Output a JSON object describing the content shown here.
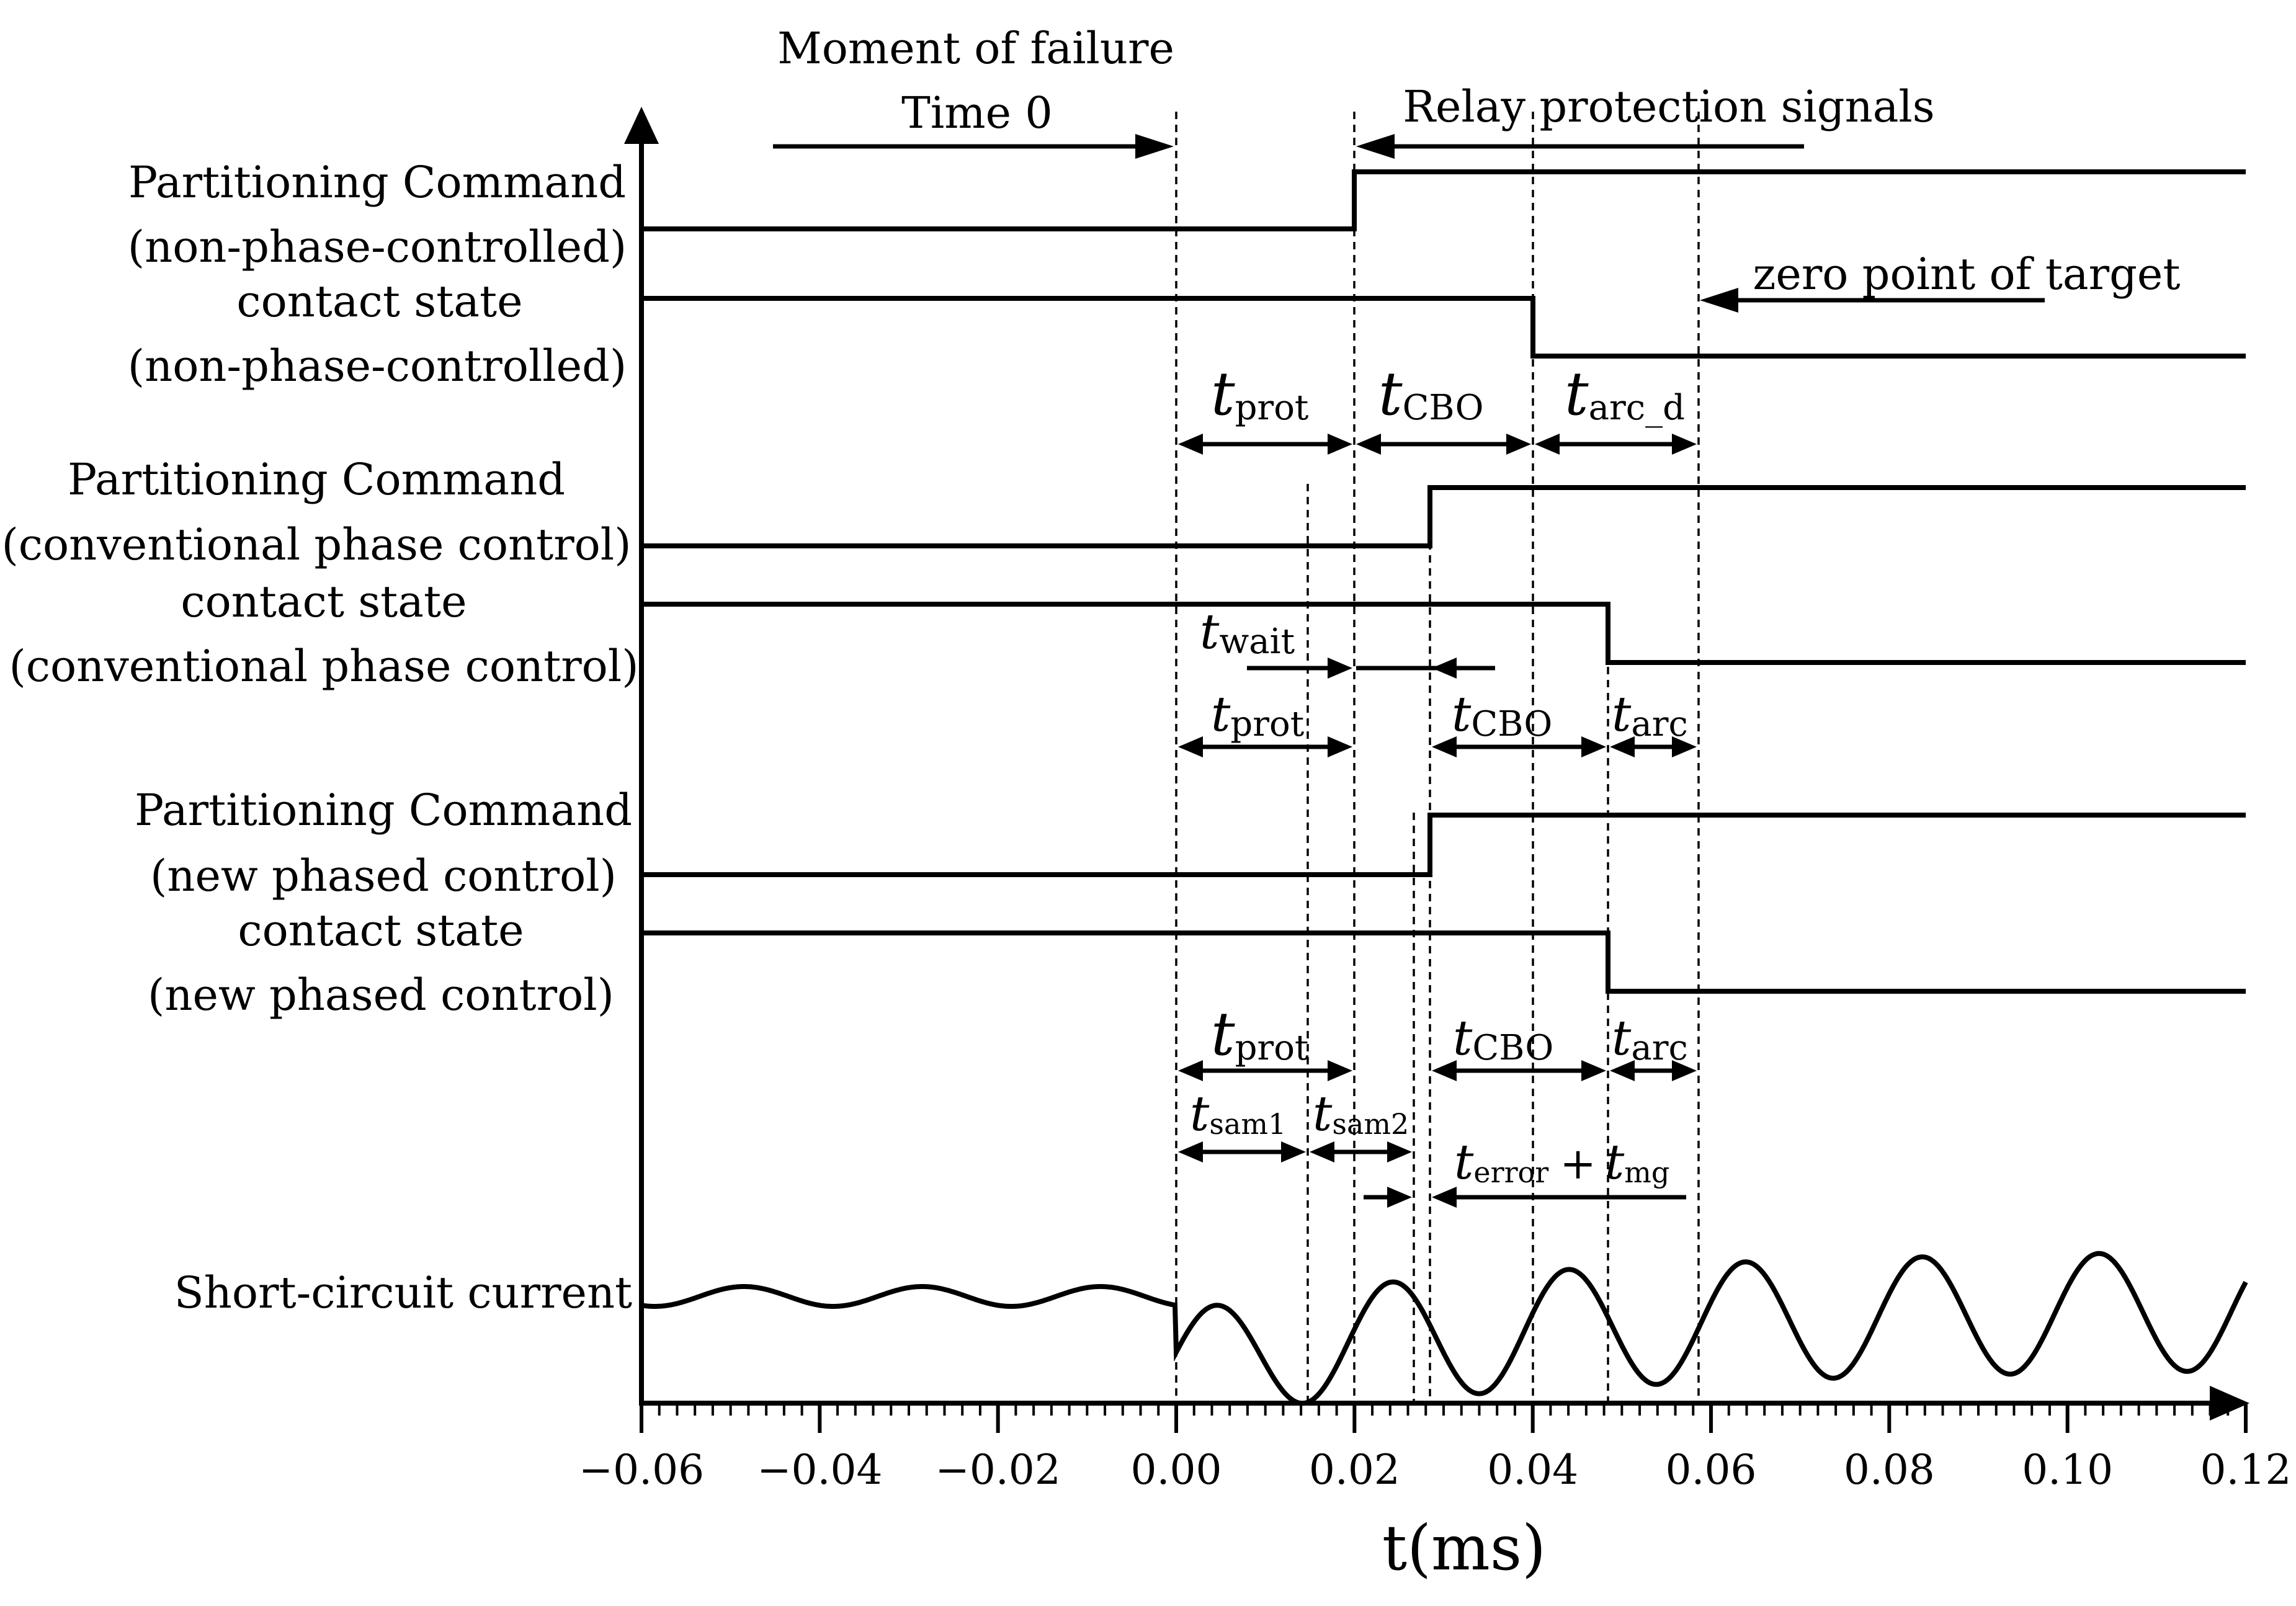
{
  "figure": {
    "annotations": {
      "moment": "Moment of failure",
      "time0": "Time 0",
      "relay": "Relay protection signals",
      "zero_target": "zero point of target"
    },
    "signals": [
      {
        "key": "cmd_np",
        "line1": "Partitioning Command",
        "line2": "(non-phase-controlled)",
        "low_to_high": true,
        "step_at": 0.02
      },
      {
        "key": "cs_np",
        "line1": "contact state",
        "line2": "(non-phase-controlled)",
        "low_to_high": false,
        "step_at": 0.04
      },
      {
        "key": "cmd_cp",
        "line1": "Partitioning Command",
        "line2": "(conventional phase control)",
        "low_to_high": true,
        "step_at": 0.0288
      },
      {
        "key": "cs_cp",
        "line1": "contact state",
        "line2": "(conventional phase control)",
        "low_to_high": false,
        "step_at": 0.0488
      },
      {
        "key": "cmd_new",
        "line1": "Partitioning Command",
        "line2": "(new phased control)",
        "low_to_high": true,
        "step_at": 0.0288
      },
      {
        "key": "cs_new",
        "line1": "contact state",
        "line2": "(new phased control)",
        "low_to_high": false,
        "step_at": 0.0488
      }
    ],
    "current_label": "Short-circuit current",
    "intervals": {
      "prot": {
        "main": "t",
        "sub": "prot"
      },
      "cbo": {
        "main": "t",
        "sub": "CBO"
      },
      "arc_d": {
        "main": "t",
        "sub": "arc_d"
      },
      "wait": {
        "main": "t",
        "sub": "wait"
      },
      "arc": {
        "main": "t",
        "sub": "arc"
      },
      "sam1": {
        "main": "t",
        "sub": "sam1"
      },
      "sam2": {
        "main": "t",
        "sub": "sam2"
      },
      "error": {
        "main": "t",
        "sub": "error"
      },
      "plus": "+",
      "mg": {
        "main": "t",
        "sub": "mg"
      }
    },
    "x_axis": {
      "label": "t(ms)",
      "range": [
        -0.06,
        0.12
      ],
      "ticks": [
        "−0.06",
        "−0.04",
        "−0.02",
        "0.00",
        "0.02",
        "0.04",
        "0.06",
        "0.08",
        "0.10",
        "0.12"
      ]
    },
    "event_times": [
      0.0,
      0.015,
      0.02,
      0.0268,
      0.0288,
      0.04,
      0.0488,
      0.0588
    ]
  }
}
